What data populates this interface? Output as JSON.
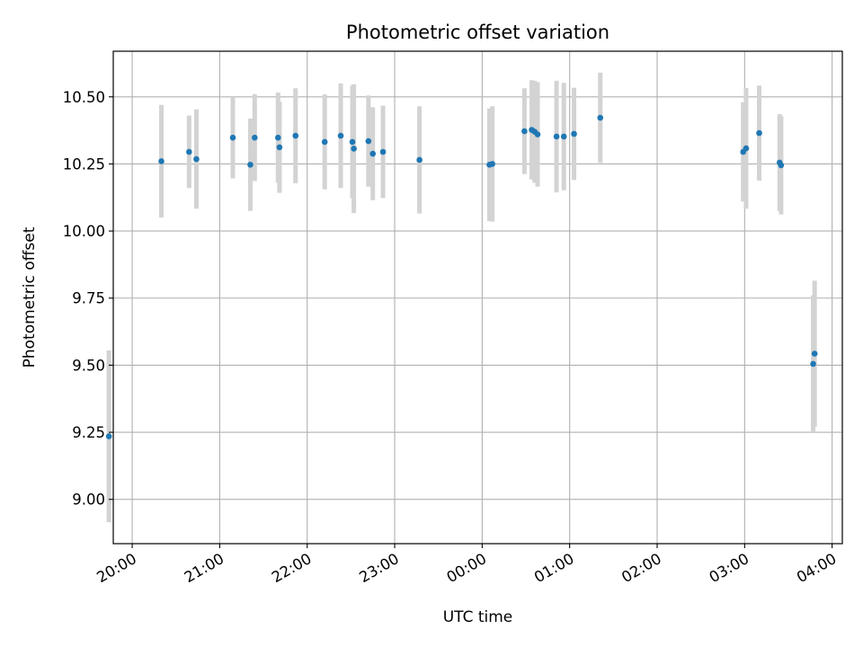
{
  "chart_data": {
    "type": "scatter",
    "title": "Photometric offset variation",
    "xlabel": "UTC time",
    "ylabel": "Photometric offset",
    "xlim": [
      "19:47",
      "04:07"
    ],
    "ylim": [
      8.835,
      10.67
    ],
    "grid": true,
    "x_ticks": [
      "20:00",
      "21:00",
      "22:00",
      "23:00",
      "00:00",
      "01:00",
      "02:00",
      "03:00",
      "04:00"
    ],
    "y_ticks": [
      "9.00",
      "9.25",
      "9.50",
      "9.75",
      "10.00",
      "10.25",
      "10.50"
    ],
    "colors": {
      "point": "#1f77b4",
      "errorbar": "#d3d3d3",
      "grid": "#b0b0b0"
    },
    "points": [
      {
        "x": "19:44",
        "y": 9.235,
        "err": 0.32
      },
      {
        "x": "20:20",
        "y": 10.26,
        "err": 0.21
      },
      {
        "x": "20:39",
        "y": 10.295,
        "err": 0.135
      },
      {
        "x": "20:44",
        "y": 10.268,
        "err": 0.185
      },
      {
        "x": "21:09",
        "y": 10.348,
        "err": 0.152
      },
      {
        "x": "21:21",
        "y": 10.247,
        "err": 0.172
      },
      {
        "x": "21:24",
        "y": 10.348,
        "err": 0.162
      },
      {
        "x": "21:40",
        "y": 10.348,
        "err": 0.168
      },
      {
        "x": "21:41",
        "y": 10.312,
        "err": 0.17
      },
      {
        "x": "21:52",
        "y": 10.355,
        "err": 0.177
      },
      {
        "x": "22:12",
        "y": 10.332,
        "err": 0.177
      },
      {
        "x": "22:23",
        "y": 10.355,
        "err": 0.195
      },
      {
        "x": "22:31",
        "y": 10.332,
        "err": 0.21
      },
      {
        "x": "22:32",
        "y": 10.307,
        "err": 0.24
      },
      {
        "x": "22:42",
        "y": 10.335,
        "err": 0.17
      },
      {
        "x": "22:45",
        "y": 10.288,
        "err": 0.173
      },
      {
        "x": "22:52",
        "y": 10.295,
        "err": 0.172
      },
      {
        "x": "23:17",
        "y": 10.265,
        "err": 0.2
      },
      {
        "x": "00:05",
        "y": 10.247,
        "err": 0.21
      },
      {
        "x": "00:07",
        "y": 10.25,
        "err": 0.215
      },
      {
        "x": "00:29",
        "y": 10.372,
        "err": 0.16
      },
      {
        "x": "00:34",
        "y": 10.377,
        "err": 0.185
      },
      {
        "x": "00:36",
        "y": 10.37,
        "err": 0.19
      },
      {
        "x": "00:38",
        "y": 10.36,
        "err": 0.195
      },
      {
        "x": "00:51",
        "y": 10.352,
        "err": 0.208
      },
      {
        "x": "00:56",
        "y": 10.352,
        "err": 0.2
      },
      {
        "x": "01:03",
        "y": 10.362,
        "err": 0.172
      },
      {
        "x": "01:21",
        "y": 10.422,
        "err": 0.168
      },
      {
        "x": "02:59",
        "y": 10.295,
        "err": 0.185
      },
      {
        "x": "03:01",
        "y": 10.308,
        "err": 0.225
      },
      {
        "x": "03:10",
        "y": 10.365,
        "err": 0.177
      },
      {
        "x": "03:24",
        "y": 10.255,
        "err": 0.18
      },
      {
        "x": "03:25",
        "y": 10.245,
        "err": 0.183
      },
      {
        "x": "03:47",
        "y": 9.505,
        "err": 0.255
      },
      {
        "x": "03:48",
        "y": 9.543,
        "err": 0.272
      }
    ]
  }
}
